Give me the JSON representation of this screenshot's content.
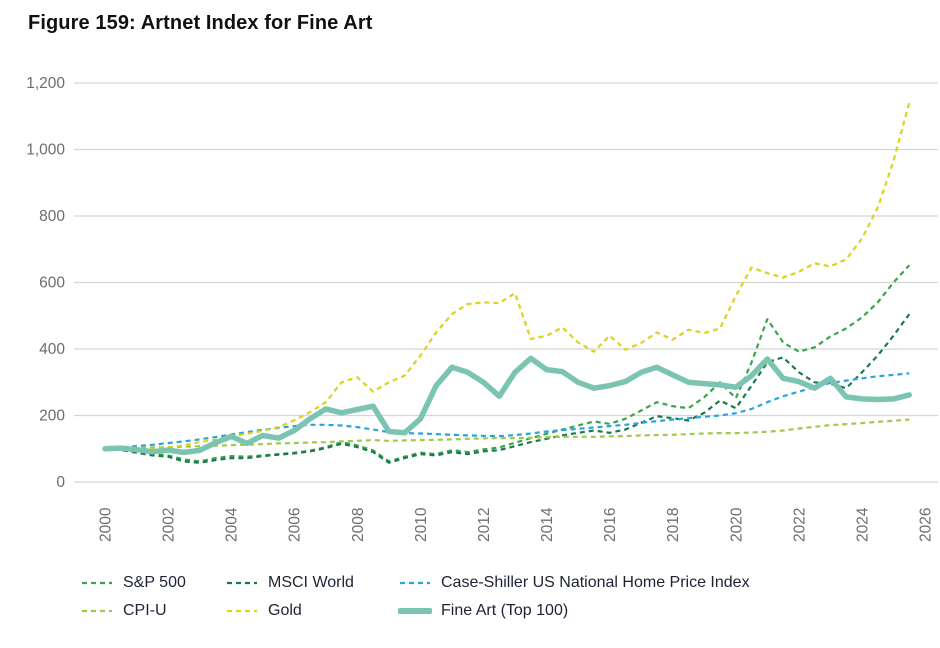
{
  "title": "Figure 159: Artnet Index for Fine Art",
  "colors": {
    "background": "#ffffff",
    "grid": "#d5d5d5",
    "axis_text": "#6c6d72",
    "title_text": "#111111",
    "legend_text": "#1e2235"
  },
  "chart_data": {
    "type": "line",
    "title": "Figure 159: Artnet Index for Fine Art",
    "xlabel": "",
    "ylabel": "",
    "ylim": [
      0,
      1200
    ],
    "y_ticks": [
      0,
      200,
      400,
      600,
      800,
      1000,
      1200
    ],
    "y_tick_labels": [
      "0",
      "200",
      "400",
      "600",
      "800",
      "1,000",
      "1,200"
    ],
    "x_ticks": [
      2000,
      2002,
      2004,
      2006,
      2008,
      2010,
      2012,
      2014,
      2016,
      2018,
      2020,
      2022,
      2024,
      2026
    ],
    "x_tick_labels": [
      "2000",
      "2002",
      "2004",
      "2006",
      "2008",
      "2010",
      "2012",
      "2014",
      "2016",
      "2018",
      "2020",
      "2022",
      "2024",
      "2026"
    ],
    "x_start": 2000,
    "x_step": 0.5,
    "grid": "horizontal-only",
    "legend_position": "bottom",
    "index_base": 100,
    "series": [
      {
        "name": "S&P 500",
        "color": "#3ba44a",
        "style": "dashed",
        "width": 2.2,
        "values": [
          100,
          97,
          90,
          84,
          80,
          68,
          62,
          72,
          78,
          76,
          80,
          84,
          88,
          94,
          105,
          120,
          110,
          95,
          62,
          76,
          88,
          84,
          96,
          90,
          98,
          104,
          118,
          132,
          145,
          158,
          170,
          182,
          175,
          190,
          215,
          240,
          228,
          222,
          255,
          300,
          252,
          360,
          490,
          420,
          392,
          405,
          438,
          462,
          495,
          540,
          600,
          652
        ]
      },
      {
        "name": "MSCI World",
        "color": "#1a7a4d",
        "style": "dashed",
        "width": 2.2,
        "values": [
          100,
          96,
          88,
          80,
          76,
          62,
          58,
          66,
          72,
          72,
          78,
          82,
          86,
          92,
          102,
          115,
          105,
          90,
          58,
          72,
          84,
          80,
          90,
          84,
          92,
          96,
          108,
          120,
          130,
          140,
          148,
          155,
          148,
          158,
          178,
          198,
          192,
          185,
          208,
          245,
          222,
          290,
          360,
          375,
          330,
          300,
          295,
          282,
          330,
          380,
          440,
          505
        ]
      },
      {
        "name": "Case-Shiller US National Home Price Index",
        "color": "#29a5dd",
        "style": "dashed",
        "width": 2.2,
        "values": [
          100,
          104,
          108,
          112,
          117,
          122,
          128,
          135,
          143,
          150,
          157,
          163,
          168,
          172,
          172,
          170,
          165,
          158,
          150,
          147,
          146,
          144,
          142,
          140,
          139,
          138,
          141,
          146,
          152,
          156,
          160,
          164,
          168,
          172,
          178,
          183,
          188,
          192,
          196,
          200,
          207,
          220,
          240,
          258,
          272,
          285,
          298,
          305,
          312,
          318,
          322,
          327
        ]
      },
      {
        "name": "CPI-U",
        "color": "#a1c94b",
        "style": "dashed",
        "width": 2.2,
        "values": [
          100,
          101,
          103,
          104,
          105,
          106,
          108,
          109,
          111,
          112,
          114,
          116,
          117,
          119,
          120,
          122,
          124,
          126,
          124,
          125,
          126,
          127,
          128,
          130,
          131,
          132,
          132,
          133,
          135,
          136,
          136,
          136,
          137,
          138,
          140,
          141,
          142,
          144,
          146,
          147,
          147,
          149,
          151,
          155,
          161,
          166,
          171,
          174,
          177,
          181,
          184,
          188
        ]
      },
      {
        "name": "Gold",
        "color": "#ddd21d",
        "style": "dashed",
        "width": 2.2,
        "values": [
          100,
          98,
          95,
          99,
          104,
          110,
          120,
          127,
          138,
          145,
          154,
          165,
          186,
          210,
          240,
          300,
          315,
          272,
          300,
          320,
          380,
          450,
          505,
          535,
          540,
          538,
          568,
          430,
          440,
          465,
          420,
          392,
          440,
          398,
          418,
          450,
          428,
          458,
          448,
          462,
          560,
          645,
          628,
          615,
          632,
          658,
          648,
          670,
          732,
          825,
          965,
          1142
        ]
      },
      {
        "name": "Fine Art (Top 100)",
        "color": "#7cc4b2",
        "style": "solid",
        "width": 5.5,
        "values": [
          100,
          102,
          97,
          91,
          96,
          89,
          95,
          118,
          137,
          116,
          140,
          132,
          155,
          190,
          220,
          208,
          218,
          228,
          152,
          148,
          190,
          290,
          345,
          330,
          300,
          258,
          330,
          372,
          338,
          332,
          300,
          282,
          290,
          302,
          330,
          345,
          322,
          300,
          296,
          292,
          285,
          320,
          370,
          312,
          302,
          282,
          312,
          256,
          250,
          248,
          250,
          262
        ]
      }
    ]
  }
}
